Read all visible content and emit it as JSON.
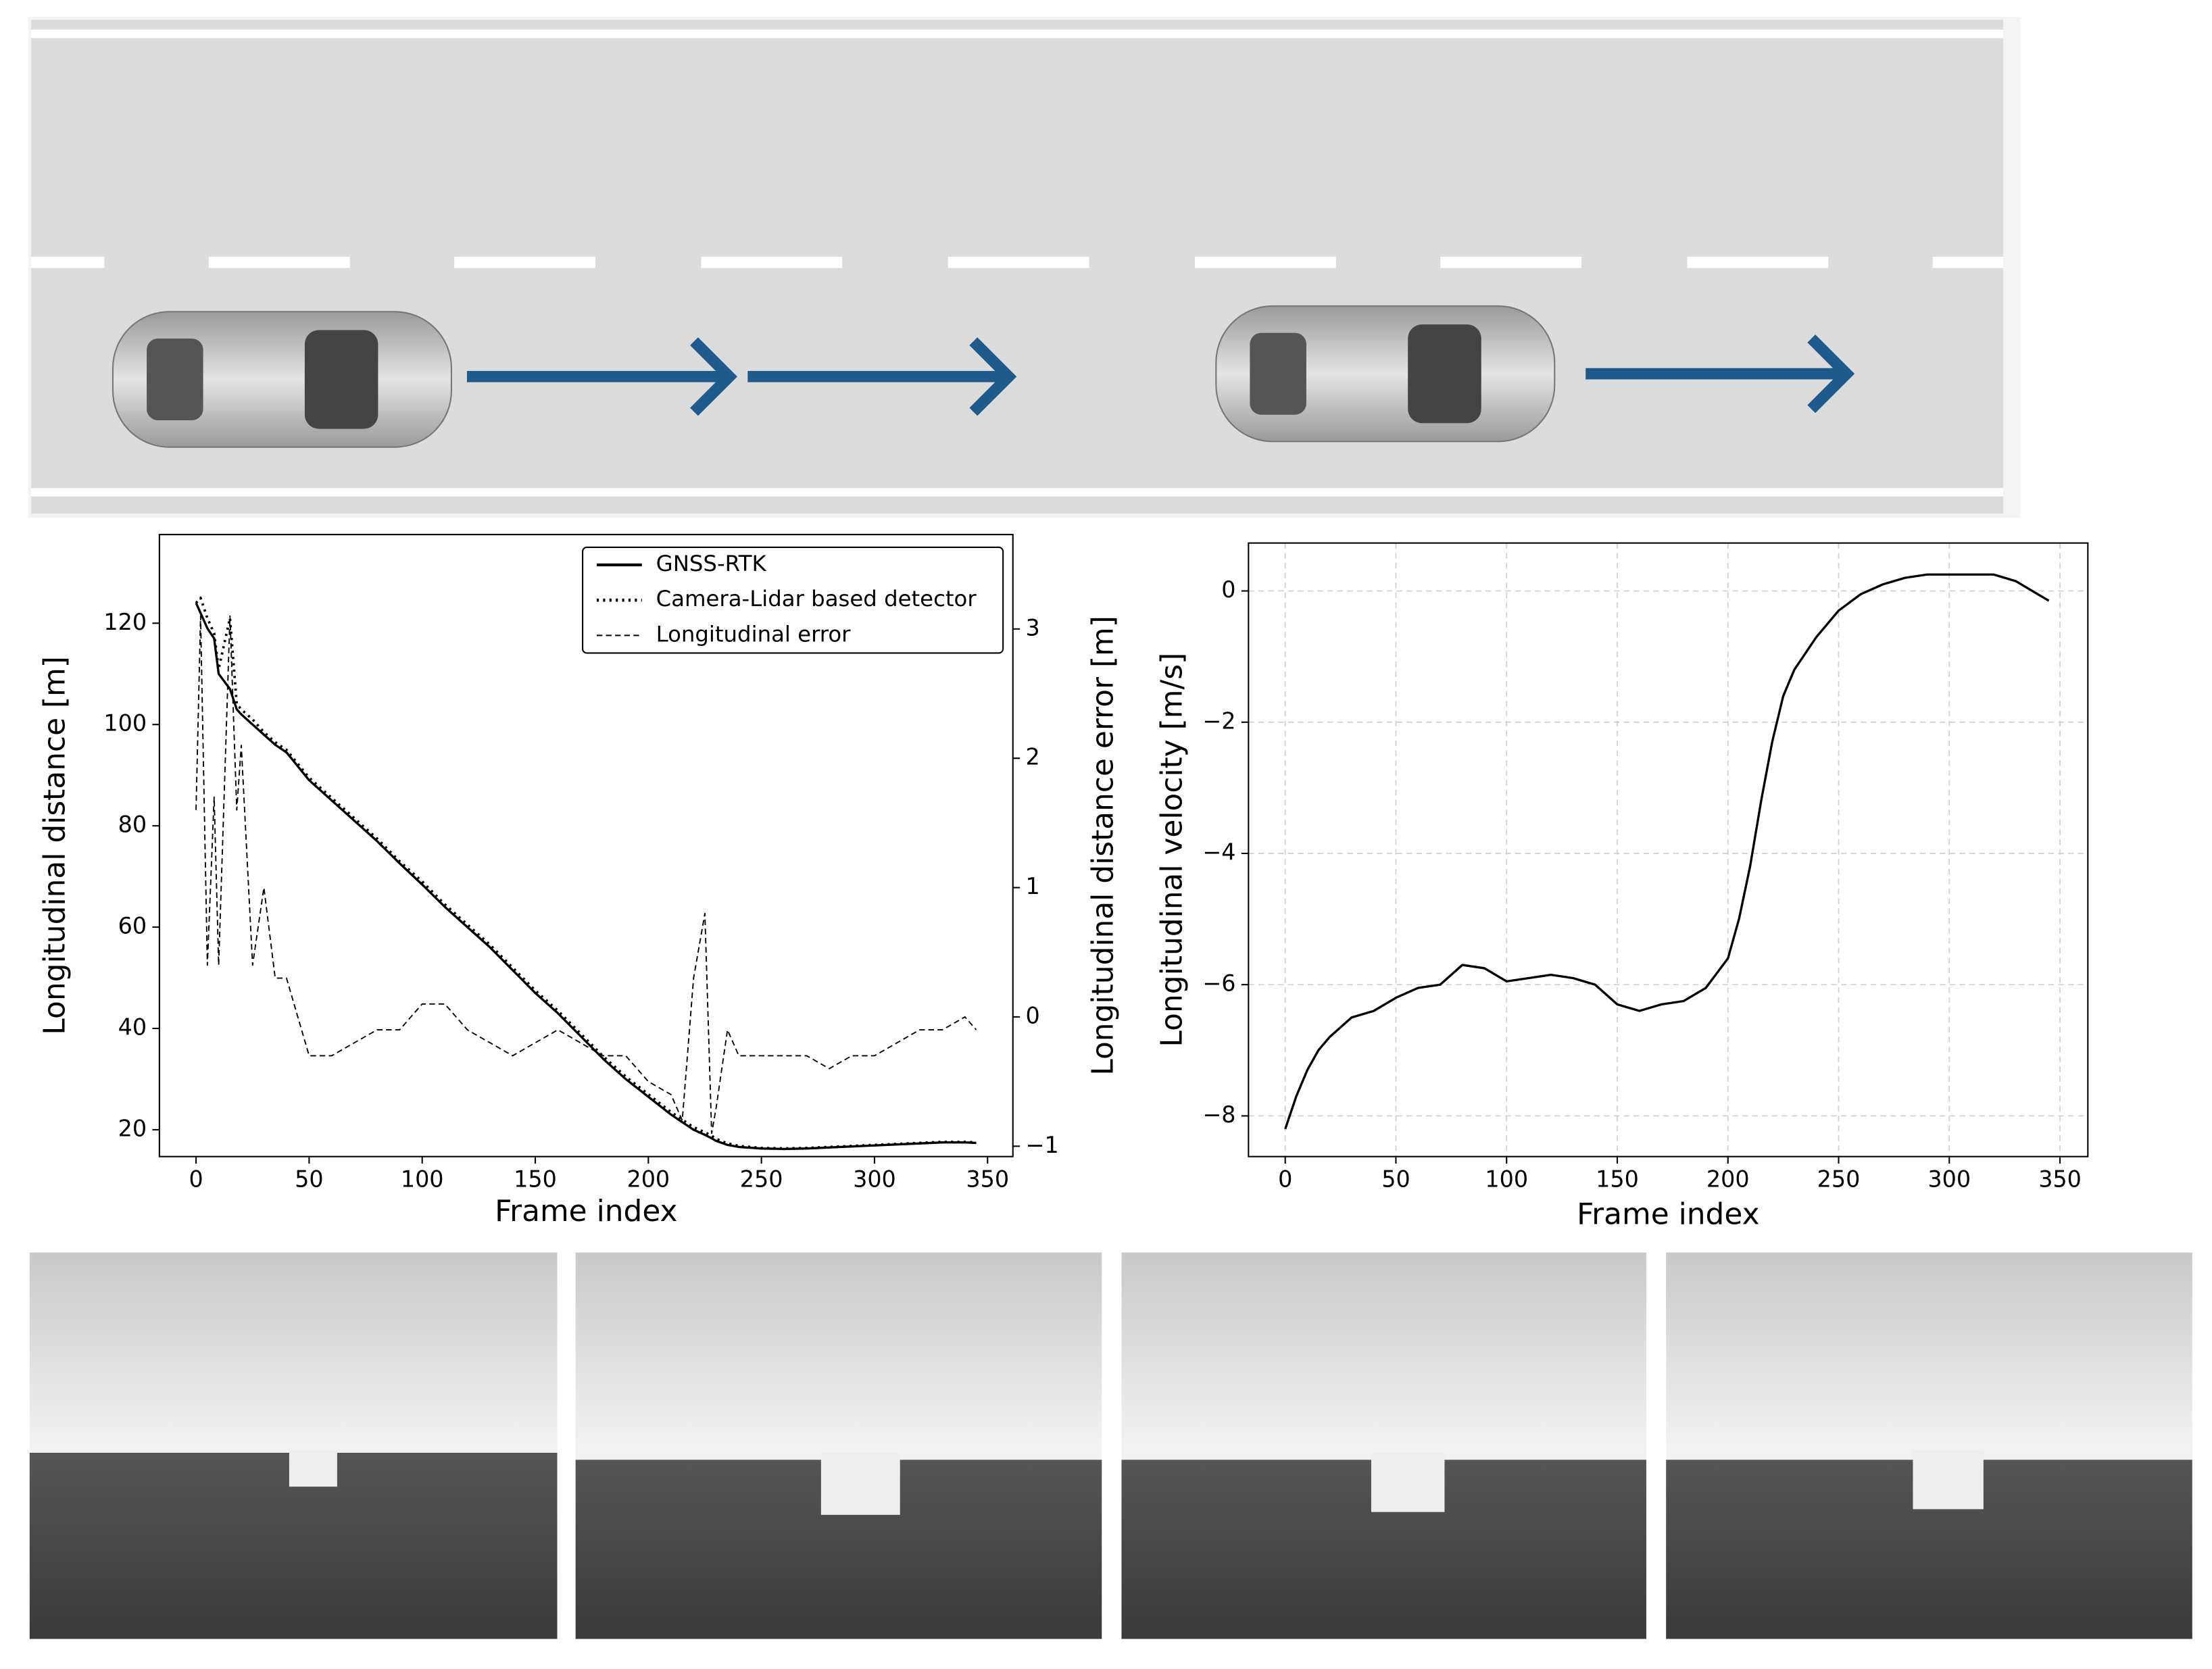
{
  "chart_data": [
    {
      "type": "line",
      "xlabel": "Frame index",
      "ylabel": "Longitudinal distance [m]",
      "y2label": "Longitudinal distance error [m]",
      "x": [
        0,
        2,
        5,
        8,
        10,
        15,
        18,
        20,
        25,
        30,
        35,
        40,
        50,
        60,
        70,
        80,
        90,
        100,
        110,
        120,
        130,
        140,
        150,
        160,
        170,
        180,
        190,
        200,
        210,
        215,
        220,
        225,
        228,
        230,
        235,
        240,
        250,
        260,
        270,
        280,
        290,
        300,
        310,
        320,
        330,
        340,
        345
      ],
      "series": [
        {
          "name": "GNSS-RTK",
          "color": "#000000",
          "style": "solid",
          "values": [
            124,
            122,
            119,
            117,
            110,
            107,
            103,
            102,
            100,
            98,
            96,
            94.5,
            89,
            85,
            81,
            77,
            72.6,
            68.4,
            64,
            60,
            56,
            51.5,
            47,
            43,
            38.5,
            34,
            30,
            26.5,
            23,
            21.5,
            20,
            19,
            18.3,
            17.8,
            17,
            16.6,
            16.3,
            16.2,
            16.3,
            16.5,
            16.7,
            16.9,
            17.1,
            17.3,
            17.5,
            17.5,
            17.4
          ]
        },
        {
          "name": "Camera-Lidar based detector",
          "color": "#000000",
          "style": "dotted",
          "values": [
            124,
            125,
            121,
            118,
            111,
            121,
            104,
            103,
            101,
            98.5,
            96.5,
            95,
            89.5,
            85.5,
            81.5,
            77.5,
            73,
            69,
            64.5,
            60.5,
            56.5,
            52,
            47.5,
            43.5,
            39,
            34.5,
            30.5,
            27,
            23.5,
            22,
            20.5,
            19.5,
            18.8,
            18.2,
            17.3,
            16.8,
            16.4,
            16.3,
            16.4,
            16.6,
            16.8,
            17,
            17.2,
            17.4,
            17.6,
            17.6,
            17.5
          ]
        },
        {
          "name": "Longitudinal error",
          "color": "#000000",
          "style": "dashed",
          "axis": "y2",
          "values": [
            1.6,
            3.1,
            0.4,
            1.7,
            0.4,
            3.1,
            1.6,
            2.1,
            0.4,
            1.0,
            0.3,
            0.3,
            -0.3,
            -0.3,
            -0.2,
            -0.1,
            -0.1,
            0.1,
            0.1,
            -0.1,
            -0.2,
            -0.3,
            -0.2,
            -0.1,
            -0.2,
            -0.3,
            -0.3,
            -0.5,
            -0.6,
            -0.8,
            0.3,
            0.8,
            -0.9,
            -0.7,
            -0.1,
            -0.3,
            -0.3,
            -0.3,
            -0.3,
            -0.4,
            -0.3,
            -0.3,
            -0.2,
            -0.1,
            -0.1,
            0.0,
            -0.1
          ]
        }
      ],
      "xlim": [
        -16.2,
        361.2
      ],
      "ylim": [
        14.7,
        137.5
      ],
      "y2lim": [
        -1.08,
        3.73
      ],
      "xticks": [
        0,
        50,
        100,
        150,
        200,
        250,
        300,
        350
      ],
      "yticks": [
        20,
        40,
        60,
        80,
        100,
        120
      ],
      "y2ticks": [
        {
          "value": -1,
          "label": "−1"
        },
        0,
        1,
        2,
        3
      ],
      "grid": false,
      "legend": "upper right"
    },
    {
      "type": "line",
      "xlabel": "Frame index",
      "ylabel": "Longitudinal velocity [m/s]",
      "x": [
        0,
        5,
        10,
        15,
        20,
        30,
        40,
        50,
        60,
        70,
        80,
        90,
        100,
        110,
        120,
        130,
        140,
        150,
        160,
        170,
        180,
        190,
        200,
        205,
        210,
        215,
        220,
        225,
        230,
        240,
        250,
        260,
        270,
        280,
        290,
        300,
        310,
        320,
        330,
        340,
        345
      ],
      "series": [
        {
          "color": "#000000",
          "style": "solid",
          "values": [
            -8.2,
            -7.7,
            -7.3,
            -7.0,
            -6.8,
            -6.5,
            -6.4,
            -6.2,
            -6.05,
            -6.0,
            -5.7,
            -5.75,
            -5.95,
            -5.9,
            -5.85,
            -5.9,
            -6.0,
            -6.3,
            -6.4,
            -6.3,
            -6.25,
            -6.05,
            -5.6,
            -5.0,
            -4.2,
            -3.2,
            -2.3,
            -1.6,
            -1.2,
            -0.7,
            -0.3,
            -0.05,
            0.1,
            0.2,
            0.25,
            0.25,
            0.25,
            0.25,
            0.15,
            -0.05,
            -0.15
          ]
        }
      ],
      "xlim": [
        -16.6,
        362.6
      ],
      "ylim": [
        -8.62,
        0.73
      ],
      "xticks": [
        0,
        50,
        100,
        150,
        200,
        250,
        300,
        350
      ],
      "yticks": [
        {
          "value": -8,
          "label": "−8"
        },
        {
          "value": -6,
          "label": "−6"
        },
        {
          "value": -4,
          "label": "−4"
        },
        {
          "value": -2,
          "label": "−2"
        },
        0
      ],
      "grid": true
    }
  ]
}
